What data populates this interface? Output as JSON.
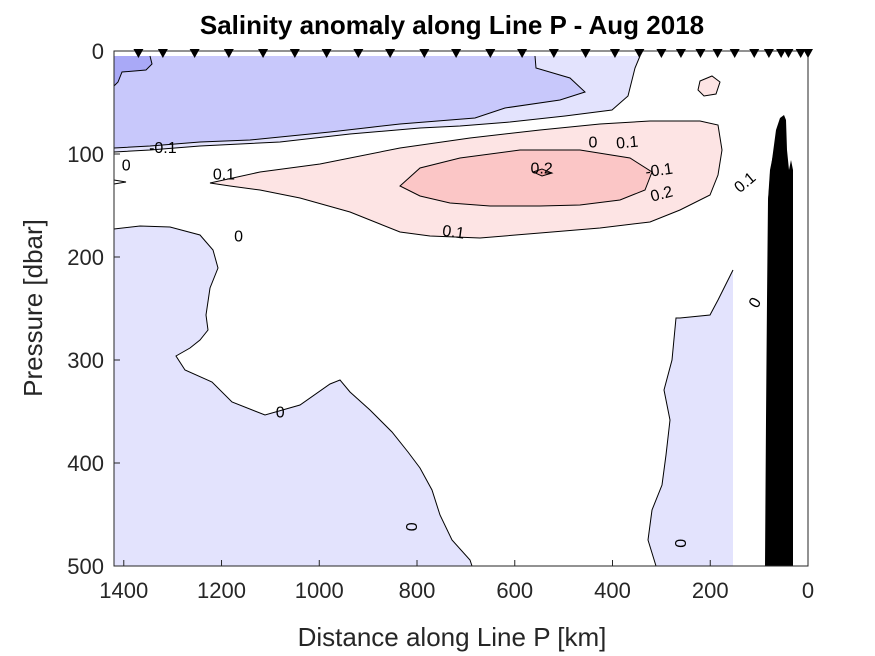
{
  "chart_data": {
    "type": "contour",
    "title": "Salinity anomaly along Line P - Aug 2018",
    "xlabel": "Distance along Line P [km]",
    "ylabel": "Pressure [dbar]",
    "xlim": [
      1420,
      0
    ],
    "ylim": [
      500,
      0
    ],
    "x_direction": "reversed",
    "y_direction": "reversed",
    "x_ticks": [
      1400,
      1200,
      1000,
      800,
      600,
      400,
      200,
      0
    ],
    "y_ticks": [
      0,
      100,
      200,
      300,
      400,
      500
    ],
    "station_distances_km": [
      1370,
      1320,
      1255,
      1185,
      1115,
      1050,
      985,
      920,
      855,
      785,
      720,
      650,
      585,
      520,
      455,
      395,
      345,
      300,
      260,
      220,
      185,
      150,
      110,
      80,
      55,
      40,
      15,
      0
    ],
    "contour_levels": [
      -0.2,
      -0.1,
      0,
      0.1,
      0.2
    ],
    "contour_labels": [
      {
        "text": "-0.1",
        "x": 305,
        "y": 115,
        "angle": -8
      },
      {
        "text": "-0.1",
        "x": 1320,
        "y": 93,
        "angle": 0
      },
      {
        "text": "0",
        "x": 440,
        "y": 88,
        "angle": 0
      },
      {
        "text": "0",
        "x": 1395,
        "y": 110,
        "angle": 0
      },
      {
        "text": "0",
        "x": 1165,
        "y": 179,
        "angle": 0
      },
      {
        "text": "0",
        "x": 1080,
        "y": 350,
        "angle": 0
      },
      {
        "text": "0",
        "x": 810,
        "y": 462,
        "angle": 90
      },
      {
        "text": "0",
        "x": 260,
        "y": 478,
        "angle": 90
      },
      {
        "text": "0",
        "x": 110,
        "y": 244,
        "angle": -60
      },
      {
        "text": "0.1",
        "x": 370,
        "y": 88,
        "angle": -5
      },
      {
        "text": "0.1",
        "x": 1195,
        "y": 119,
        "angle": 0
      },
      {
        "text": "0.1",
        "x": 725,
        "y": 175,
        "angle": 8
      },
      {
        "text": "0.1",
        "x": 130,
        "y": 127,
        "angle": -40
      },
      {
        "text": "0.2",
        "x": 545,
        "y": 113,
        "angle": 0
      },
      {
        "text": "0.2",
        "x": 300,
        "y": 138,
        "angle": -15
      }
    ],
    "terrain": "bathymetry/shelf shown in black near 0-60 km",
    "colormap": "diverging blue-white-red"
  }
}
